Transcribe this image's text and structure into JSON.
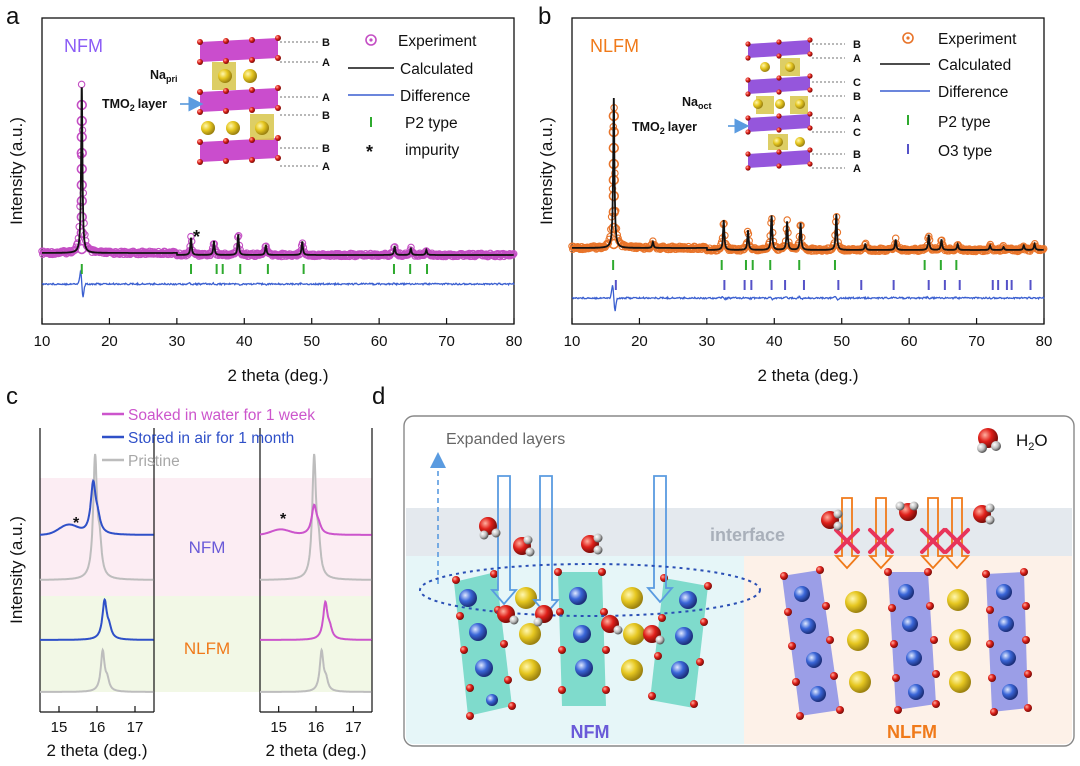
{
  "panels": {
    "a": "a",
    "b": "b",
    "c": "c",
    "d": "d"
  },
  "colors": {
    "nfm": "#8b5cf6",
    "nlfm": "#f07a1a",
    "experiment_a": "#c44fc4",
    "experiment_b": "#e8742a",
    "calc": "#111111",
    "diff": "#3a5fd0",
    "p2": "#2eaa2e",
    "o3": "#5552c8",
    "pristine": "#bdbdbd",
    "air": "#2f50c8",
    "water": "#cc55cc"
  },
  "chart_data": [
    {
      "id": "a",
      "type": "line",
      "title": "NFM",
      "xlabel": "2 theta (deg.)",
      "ylabel": "Intensity (a.u.)",
      "xlim": [
        10,
        80
      ],
      "xticks": [
        10,
        20,
        30,
        40,
        50,
        60,
        70,
        80
      ],
      "peaks": [
        [
          15.9,
          1.0
        ],
        [
          32.1,
          0.1
        ],
        [
          35.5,
          0.08
        ],
        [
          39.1,
          0.12
        ],
        [
          43.2,
          0.06
        ],
        [
          48.6,
          0.08
        ],
        [
          62.3,
          0.05
        ],
        [
          64.7,
          0.04
        ],
        [
          67.0,
          0.03
        ]
      ],
      "p2_ticks": [
        15.9,
        32.1,
        35.9,
        36.8,
        39.4,
        43.5,
        48.8,
        62.2,
        64.6,
        67.1
      ],
      "impurity_marker": "*",
      "legend": [
        "Experiment",
        "Calculated",
        "Difference",
        "P2 type",
        "impurity"
      ],
      "structure_labels": {
        "layers": [
          "B",
          "A",
          "A",
          "B",
          "B",
          "A"
        ],
        "na_site": "Na",
        "na_sub": "pri",
        "tmo_layer": "TMO",
        "tmo_sub": "2",
        "tmo_suffix": "layer"
      }
    },
    {
      "id": "b",
      "type": "line",
      "title": "NLFM",
      "xlabel": "2 theta (deg.)",
      "ylabel": "Intensity (a.u.)",
      "xlim": [
        10,
        80
      ],
      "xticks": [
        10,
        20,
        30,
        40,
        50,
        60,
        70,
        80
      ],
      "peaks": [
        [
          16.2,
          1.0
        ],
        [
          22.0,
          0.04
        ],
        [
          32.5,
          0.2
        ],
        [
          36.1,
          0.13
        ],
        [
          39.6,
          0.23
        ],
        [
          41.9,
          0.19
        ],
        [
          43.9,
          0.18
        ],
        [
          49.2,
          0.24
        ],
        [
          53.5,
          0.04
        ],
        [
          58.0,
          0.07
        ],
        [
          62.9,
          0.1
        ],
        [
          64.8,
          0.07
        ],
        [
          67.2,
          0.04
        ],
        [
          72.0,
          0.03
        ],
        [
          74.0,
          0.02
        ],
        [
          77.0,
          0.03
        ],
        [
          78.6,
          0.04
        ]
      ],
      "p2_ticks": [
        16.1,
        32.2,
        35.8,
        36.8,
        39.4,
        43.7,
        49.0,
        62.3,
        64.7,
        67.0
      ],
      "o3_ticks": [
        16.5,
        32.6,
        35.6,
        36.6,
        39.6,
        41.6,
        44.4,
        49.5,
        52.9,
        57.7,
        62.9,
        65.3,
        67.5,
        72.4,
        73.2,
        74.5,
        75.2,
        78.0
      ],
      "legend": [
        "Experiment",
        "Calculated",
        "Difference",
        "P2 type",
        "O3 type"
      ],
      "structure_labels": {
        "layers": [
          "B",
          "A",
          "C",
          "B",
          "A",
          "C",
          "B",
          "A"
        ],
        "na_site": "Na",
        "na_sub": "oct",
        "tmo_layer": "TMO",
        "tmo_sub": "2",
        "tmo_suffix": "layer"
      }
    },
    {
      "id": "c",
      "type": "line",
      "xlabel": "2 theta (deg.)",
      "ylabel": "Intensity (a.u.)",
      "xlim": [
        14.5,
        17.5
      ],
      "xticks": [
        15,
        16,
        17
      ],
      "legend": [
        "Soaked in water for 1 week",
        "Stored in air for 1 month",
        "Pristine"
      ],
      "row_labels": [
        "NFM",
        "NLFM"
      ],
      "impurity_marker": "*",
      "series": [
        {
          "name": "NFM Pristine (left)",
          "center": 15.95,
          "width": 0.06
        },
        {
          "name": "NFM Air (left)",
          "center": 15.9,
          "width": 0.08,
          "shoulder": 15.25
        },
        {
          "name": "NFM Pristine (right)",
          "center": 15.95,
          "width": 0.06
        },
        {
          "name": "NFM Water (right)",
          "center": 15.95,
          "width": 0.08,
          "shoulder": 15.05
        },
        {
          "name": "NLFM Pristine (left)",
          "center": 16.15,
          "width": 0.06
        },
        {
          "name": "NLFM Air (left)",
          "center": 16.2,
          "width": 0.07
        },
        {
          "name": "NLFM Pristine (right)",
          "center": 16.15,
          "width": 0.06
        },
        {
          "name": "NLFM Water (right)",
          "center": 16.25,
          "width": 0.07
        }
      ]
    }
  ],
  "diagram": {
    "expanded_label": "Expanded layers",
    "water_label": "H",
    "water_sub": "2",
    "water_suffix": "O",
    "interface_label": "interface",
    "nfm_label": "NFM",
    "nlfm_label": "NLFM"
  }
}
